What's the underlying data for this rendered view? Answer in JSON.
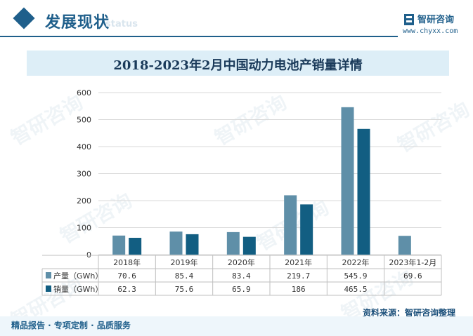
{
  "header": {
    "title": "发展现状",
    "ghost": "status",
    "logo_name": "智研咨询",
    "logo_url": "www.chyxx.com"
  },
  "chart_data": {
    "type": "bar",
    "title": "2018-2023年2月中国动力电池产销量详情",
    "categories": [
      "2018年",
      "2019年",
      "2020年",
      "2021年",
      "2022年",
      "2023年1-2月"
    ],
    "series": [
      {
        "name": "产量（GWh）",
        "values": [
          70.6,
          85.4,
          83.4,
          219.7,
          545.9,
          69.6
        ],
        "display": [
          "70.6",
          "85.4",
          "83.4",
          "219.7",
          "545.9",
          "69.6"
        ],
        "color": "#5f8fa8"
      },
      {
        "name": "销量（GWh）",
        "values": [
          62.3,
          75.6,
          65.9,
          186,
          465.5,
          null
        ],
        "display": [
          "62.3",
          "75.6",
          "65.9",
          "186",
          "465.5",
          ""
        ],
        "color": "#125e82"
      }
    ],
    "yticks": [
      0,
      100,
      200,
      300,
      400,
      500,
      600
    ],
    "ylim": [
      0,
      600
    ],
    "grid": true,
    "legend": "table-below"
  },
  "watermark_text": "智研咨询",
  "source": "资料来源：智研咨询整理",
  "footer": "精品报告 · 专项定制 · 品质服务"
}
